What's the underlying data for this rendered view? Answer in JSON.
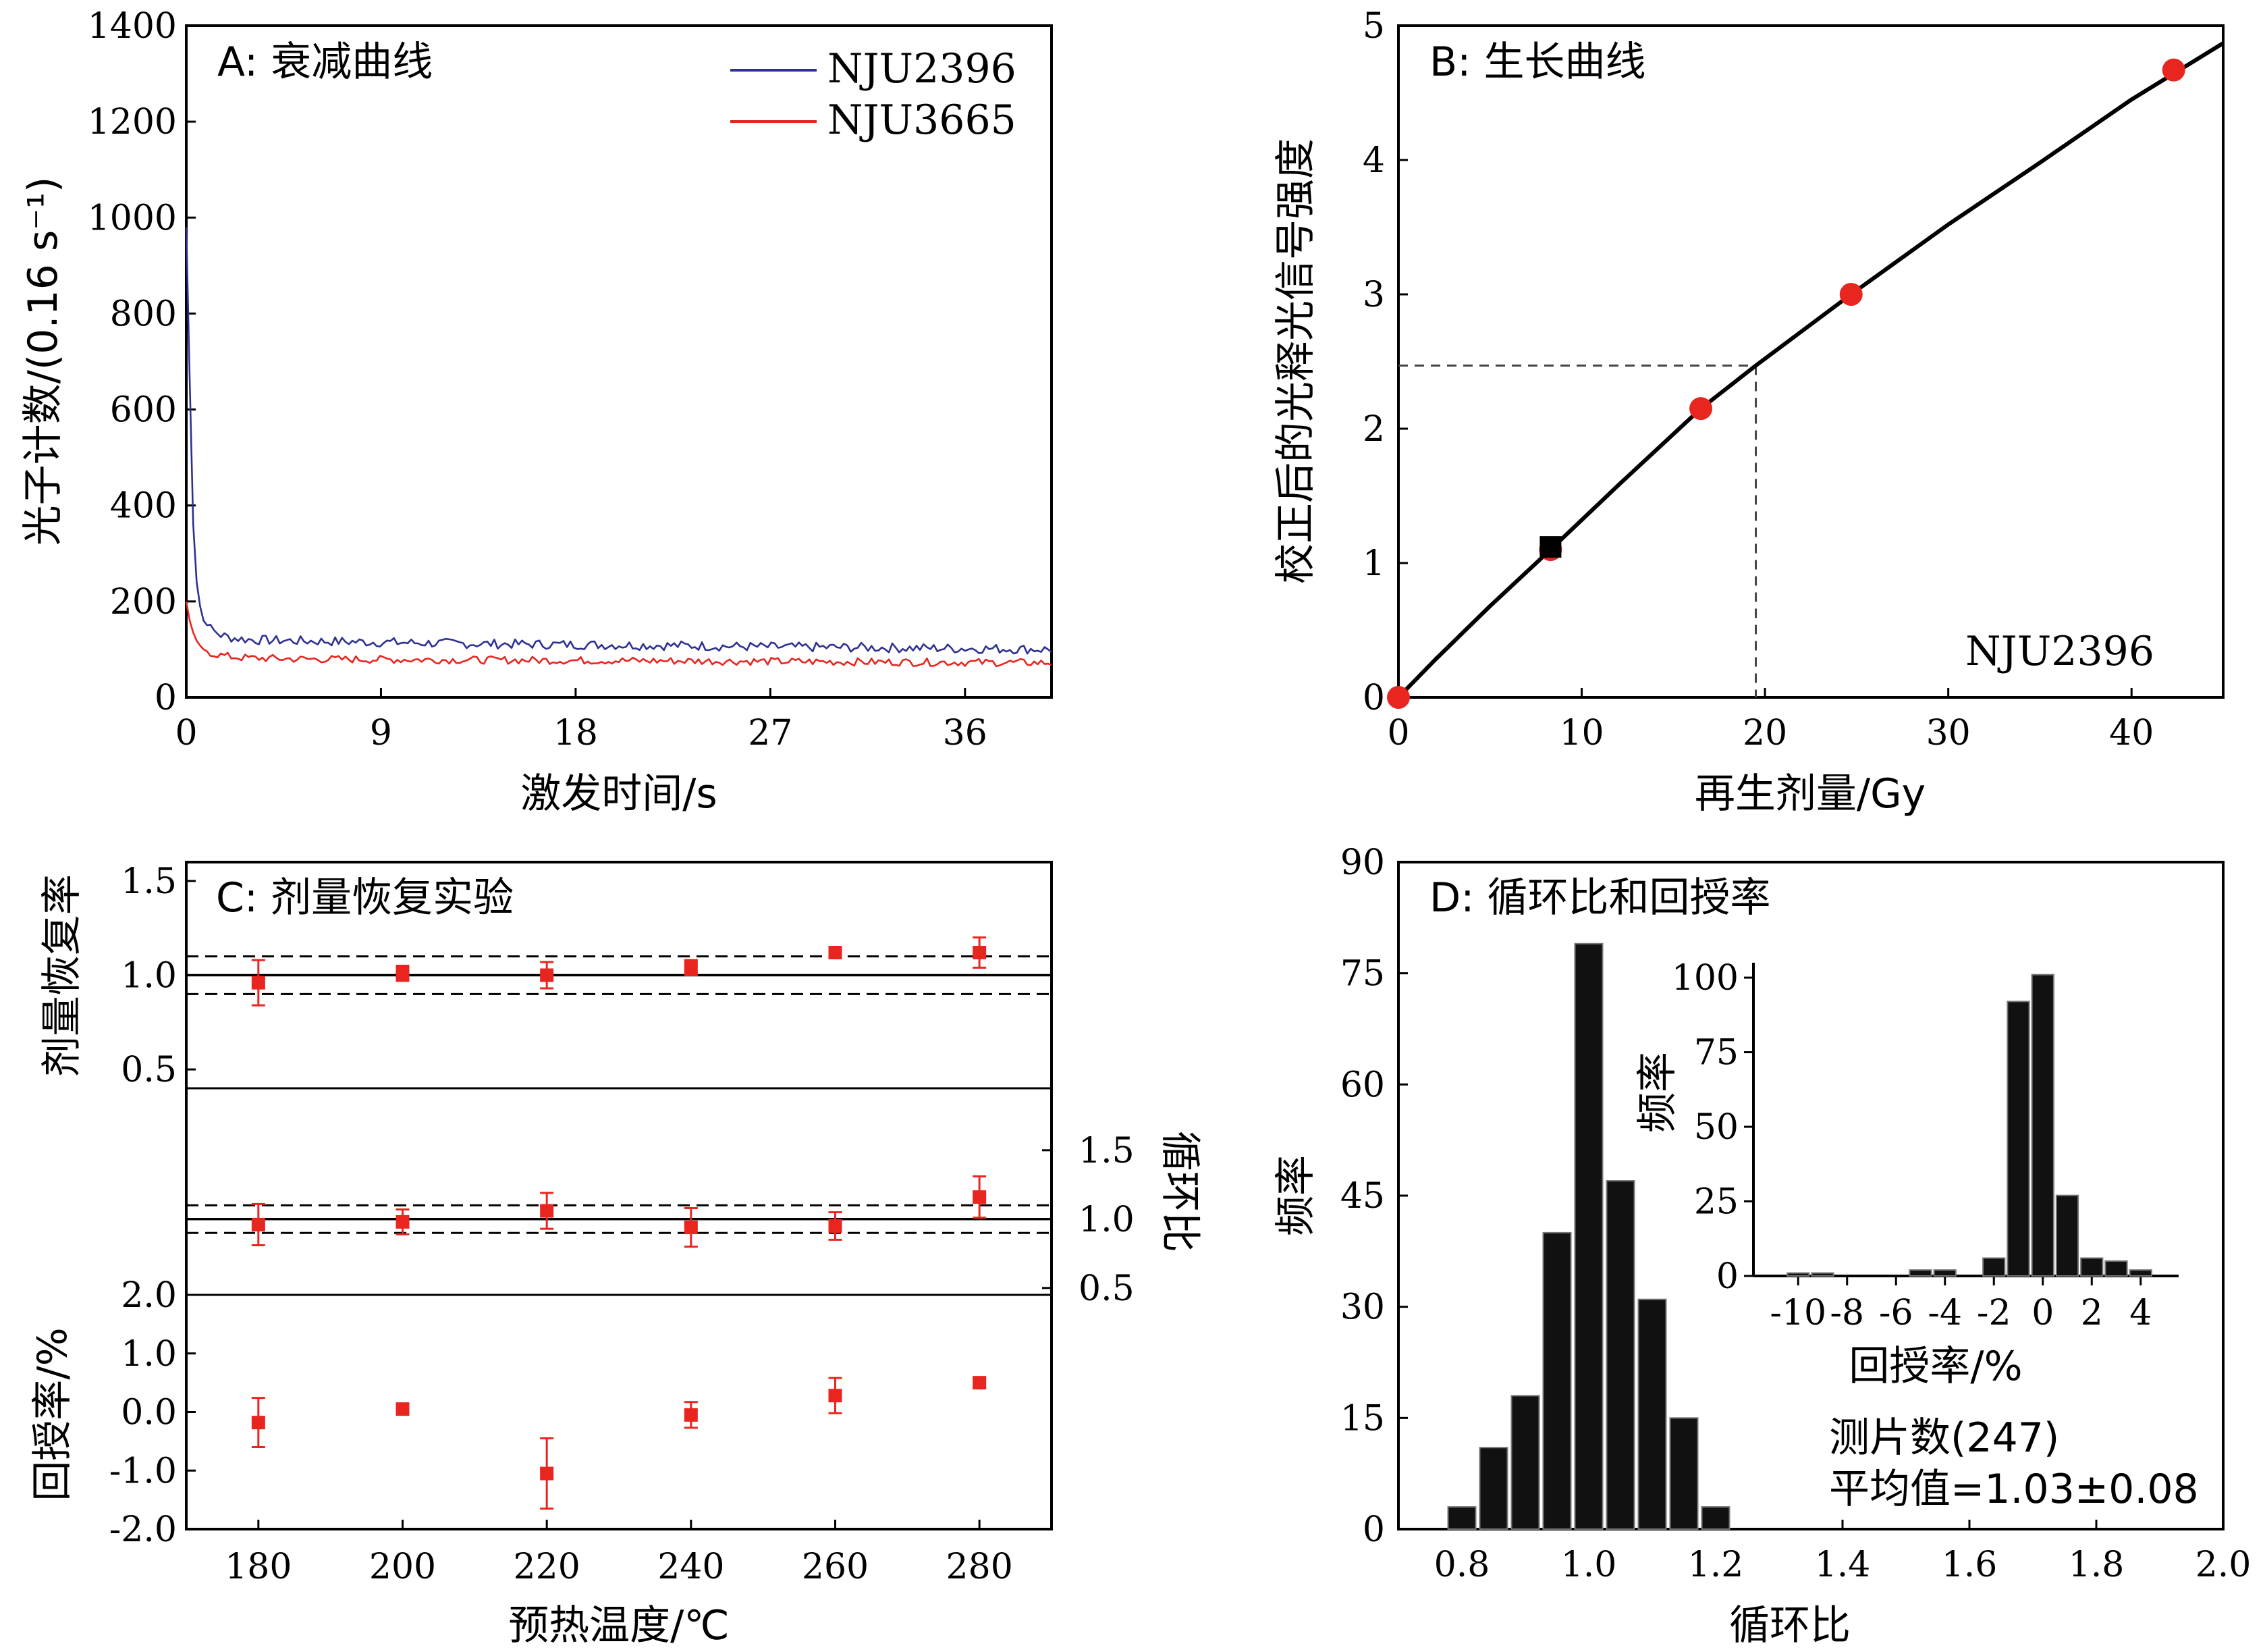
{
  "chart_data": [
    {
      "panel": "A",
      "type": "line",
      "title": "A: 衰减曲线",
      "xlabel": "激发时间/s",
      "ylabel": "光子计数/(0.16 s⁻¹)",
      "xlim": [
        0,
        40
      ],
      "ylim": [
        0,
        1400
      ],
      "xticks": [
        "0",
        "9",
        "18",
        "27",
        "36"
      ],
      "yticks": [
        "0",
        "200",
        "400",
        "600",
        "800",
        "1000",
        "1200",
        "1400"
      ],
      "legend": "top-right",
      "series": [
        {
          "name": "NJU2396",
          "color": "#2e3192",
          "x": [
            0,
            0.16,
            0.32,
            0.48,
            0.64,
            0.8,
            1.0,
            1.3,
            1.6,
            2.0,
            2.5,
            3,
            5,
            9,
            13,
            18,
            23,
            27,
            31,
            36,
            40
          ],
          "y": [
            980,
            660,
            360,
            240,
            190,
            160,
            148,
            138,
            130,
            125,
            122,
            120,
            118,
            115,
            112,
            110,
            108,
            105,
            104,
            102,
            100
          ]
        },
        {
          "name": "NJU3665",
          "color": "#e8251f",
          "x": [
            0,
            0.16,
            0.32,
            0.48,
            0.64,
            0.8,
            1.0,
            1.3,
            1.6,
            2.0,
            2.5,
            3,
            5,
            9,
            13,
            18,
            23,
            27,
            31,
            36,
            40
          ],
          "y": [
            200,
            160,
            135,
            118,
            108,
            100,
            95,
            90,
            88,
            85,
            83,
            82,
            80,
            79,
            78,
            77,
            76,
            75,
            74,
            73,
            72
          ]
        }
      ]
    },
    {
      "panel": "B",
      "type": "scatter",
      "title": "B: 生长曲线",
      "xlabel": "再生剂量/Gy",
      "ylabel": "校正后的光释光信号强度",
      "xlim": [
        0,
        45
      ],
      "ylim": [
        0,
        5
      ],
      "xticks": [
        "0",
        "10",
        "20",
        "30",
        "40"
      ],
      "yticks": [
        "0",
        "1",
        "2",
        "3",
        "4",
        "5"
      ],
      "annotation": "NJU2396",
      "points": [
        {
          "x": 0,
          "y": 0
        },
        {
          "x": 8.3,
          "y": 1.1
        },
        {
          "x": 16.5,
          "y": 2.15
        },
        {
          "x": 24.7,
          "y": 3.0
        },
        {
          "x": 42.3,
          "y": 4.67
        }
      ],
      "recycled_point": {
        "x": 8.3,
        "y": 1.12
      },
      "fit_curve": {
        "x": [
          0,
          2,
          5,
          8.3,
          12,
          16.5,
          19.5,
          24.7,
          30,
          35,
          40,
          45
        ],
        "y": [
          0,
          0.28,
          0.68,
          1.1,
          1.58,
          2.15,
          2.47,
          3.0,
          3.52,
          3.98,
          4.45,
          4.87
        ]
      },
      "de": {
        "x": 19.5,
        "y": 2.47
      },
      "point_color": "#e8251f",
      "recycled_color": "#000000"
    },
    {
      "panel": "C",
      "type": "scatter",
      "title": "C: 剂量恢复实验",
      "xlabel": "预热温度/℃",
      "xlim": [
        170,
        290
      ],
      "x": [
        180,
        200,
        220,
        240,
        260,
        280
      ],
      "xticks": [
        "180",
        "200",
        "220",
        "240",
        "260",
        "280"
      ],
      "color": "#e8251f",
      "subplots": [
        {
          "name": "剂量恢复率",
          "ylabel": "剂量恢复率",
          "axis_side": "left",
          "ylim": [
            0.4,
            1.6
          ],
          "yticks": [
            "0.5",
            "1.0",
            "1.5"
          ],
          "ref_line": 1.0,
          "band": [
            0.9,
            1.1
          ],
          "values": [
            0.96,
            1.01,
            1.0,
            1.04,
            1.12,
            1.12
          ],
          "err": [
            0.12,
            0.04,
            0.07,
            0.04,
            0.03,
            0.08
          ]
        },
        {
          "name": "循环比",
          "ylabel": "循环比",
          "axis_side": "right",
          "ylim": [
            0.45,
            1.95
          ],
          "yticks": [
            "0.5",
            "1.0",
            "1.5"
          ],
          "ref_line": 1.0,
          "band": [
            0.9,
            1.1
          ],
          "values": [
            0.96,
            0.98,
            1.06,
            0.94,
            0.95,
            1.16
          ],
          "err": [
            0.15,
            0.09,
            0.13,
            0.14,
            0.1,
            0.15
          ]
        },
        {
          "name": "回授率/%",
          "ylabel": "回授率/%",
          "axis_side": "left",
          "ylim": [
            -2.0,
            2.0
          ],
          "yticks": [
            "-2.0",
            "-1.0",
            "0.0",
            "1.0",
            "2.0"
          ],
          "values": [
            -0.18,
            0.05,
            -1.05,
            -0.05,
            0.28,
            0.5
          ],
          "err": [
            0.42,
            0.06,
            0.6,
            0.22,
            0.3,
            0.08
          ]
        }
      ]
    },
    {
      "panel": "D",
      "type": "bar",
      "title": "D: 循环比和回授率",
      "xlabel": "循环比",
      "ylabel": "频率",
      "xlim": [
        0.7,
        2.0
      ],
      "ylim": [
        0,
        90
      ],
      "xticks": [
        "0.8",
        "1.0",
        "1.2",
        "1.4",
        "1.6",
        "1.8",
        "2.0"
      ],
      "yticks": [
        "0",
        "15",
        "30",
        "45",
        "60",
        "75",
        "90"
      ],
      "bin_width": 0.05,
      "bins": [
        0.8,
        0.85,
        0.9,
        0.95,
        1.0,
        1.05,
        1.1,
        1.15,
        1.2
      ],
      "values": [
        3,
        11,
        18,
        40,
        79,
        47,
        31,
        15,
        3
      ],
      "annotation_lines": [
        "测片数(247)",
        "平均值=1.03±0.08"
      ],
      "inset": {
        "type": "bar",
        "xlabel": "回授率/%",
        "ylabel": "频率",
        "xlim": [
          -11,
          5
        ],
        "ylim": [
          0,
          105
        ],
        "xticks": [
          "-10",
          "-8",
          "-6",
          "-4",
          "-2",
          "0",
          "2",
          "4"
        ],
        "yticks": [
          "0",
          "25",
          "50",
          "75",
          "100"
        ],
        "bin_width": 1,
        "bins": [
          -10,
          -9,
          -8,
          -7,
          -6,
          -5,
          -4,
          -3,
          -2,
          -1,
          0,
          1,
          2,
          3,
          4
        ],
        "values": [
          1,
          1,
          0,
          0,
          0,
          2,
          2,
          0,
          6,
          92,
          101,
          27,
          6,
          5,
          2
        ]
      }
    }
  ]
}
